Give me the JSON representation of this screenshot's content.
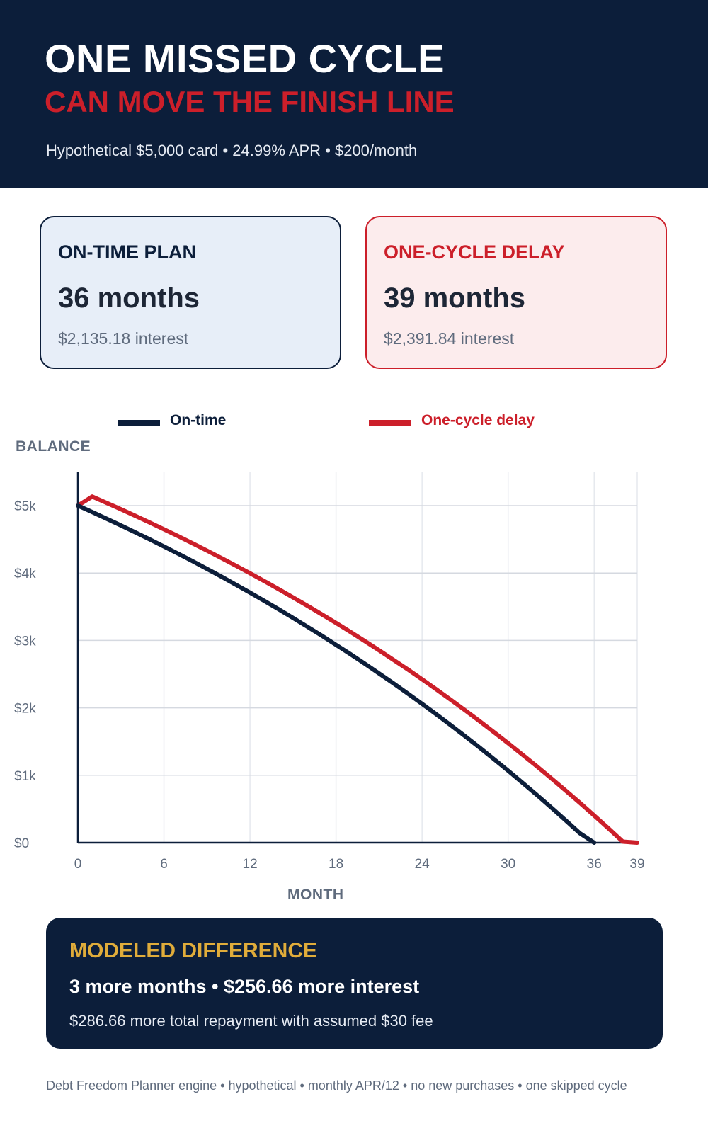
{
  "header": {
    "title_line1": "ONE MISSED CYCLE",
    "title_line2": "CAN MOVE THE FINISH LINE",
    "subtitle": "Hypothetical $5,000 card • 24.99% APR • $200/month"
  },
  "cards": {
    "ontime": {
      "label": "ON-TIME PLAN",
      "value": "36 months",
      "sub": "$2,135.18 interest"
    },
    "delay": {
      "label": "ONE-CYCLE DELAY",
      "value": "39 months",
      "sub": "$2,391.84 interest"
    }
  },
  "colors": {
    "navy": "#0c1e3a",
    "red": "#cc1f2a",
    "gold": "#e0ac3a",
    "grid": "#d5d9e0",
    "muted": "#5f6b7d"
  },
  "chart_data": {
    "type": "line",
    "xlabel": "MONTH",
    "ylabel": "BALANCE",
    "xlim": [
      0,
      39
    ],
    "ylim": [
      0,
      5000
    ],
    "x_ticks": [
      0,
      6,
      12,
      18,
      24,
      30,
      36,
      39
    ],
    "y_ticks": [
      0,
      1000,
      2000,
      3000,
      4000,
      5000
    ],
    "y_tick_labels": [
      "$0",
      "$1k",
      "$2k",
      "$3k",
      "$4k",
      "$5k"
    ],
    "legend_position": "top",
    "grid": true,
    "series": [
      {
        "name": "On-time",
        "color": "#0c1e3a",
        "x": [
          0,
          1,
          2,
          3,
          4,
          5,
          6,
          7,
          8,
          9,
          10,
          11,
          12,
          13,
          14,
          15,
          16,
          17,
          18,
          19,
          20,
          21,
          22,
          23,
          24,
          25,
          26,
          27,
          28,
          29,
          30,
          31,
          32,
          33,
          34,
          35,
          36
        ],
        "y": [
          5000,
          4904,
          4806,
          4706,
          4604,
          4500,
          4394,
          4286,
          4175,
          4062,
          3947,
          3829,
          3709,
          3587,
          3462,
          3334,
          3204,
          3071,
          2935,
          2797,
          2656,
          2511,
          2364,
          2213,
          2060,
          1903,
          1743,
          1580,
          1413,
          1242,
          1068,
          890,
          709,
          523,
          334,
          141,
          0
        ]
      },
      {
        "name": "One-cycle delay",
        "color": "#cc1f2a",
        "x": [
          0,
          1,
          2,
          3,
          4,
          5,
          6,
          7,
          8,
          9,
          10,
          11,
          12,
          13,
          14,
          15,
          16,
          17,
          18,
          19,
          20,
          21,
          22,
          23,
          24,
          25,
          26,
          27,
          28,
          29,
          30,
          31,
          32,
          33,
          34,
          35,
          36,
          37,
          38,
          39
        ],
        "y": [
          5000,
          5134,
          5041,
          4946,
          4849,
          4750,
          4649,
          4546,
          4440,
          4333,
          4223,
          4111,
          3997,
          3880,
          3761,
          3639,
          3515,
          3388,
          3259,
          3127,
          2992,
          2854,
          2713,
          2570,
          2423,
          2273,
          2120,
          1964,
          1805,
          1642,
          1476,
          1306,
          1133,
          956,
          775,
          591,
          403,
          211,
          16,
          0
        ]
      }
    ]
  },
  "summary": {
    "title": "MODELED DIFFERENCE",
    "main": "3 more months  •  $256.66 more interest",
    "sub": "$286.66 more total repayment with assumed $30 fee"
  },
  "footnote": "Debt Freedom Planner engine • hypothetical • monthly APR/12 • no new purchases • one skipped cycle"
}
